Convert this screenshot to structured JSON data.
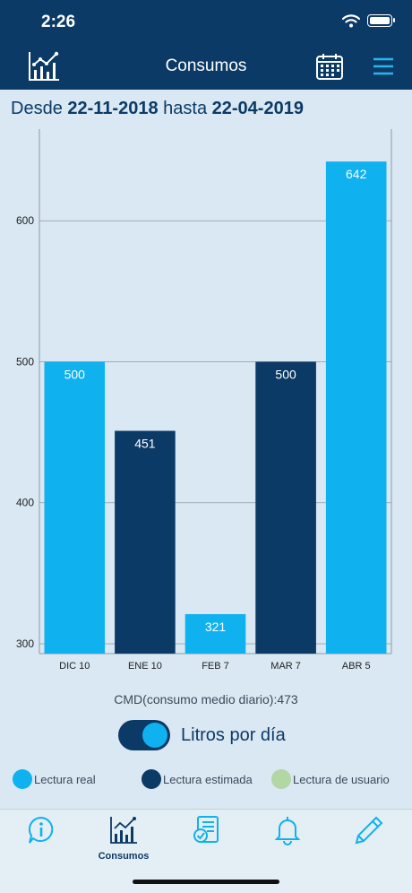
{
  "status_bar": {
    "time": "2:26"
  },
  "header": {
    "title": "Consumos"
  },
  "range": {
    "from_word": "Desde",
    "from_date": "22-11-2018",
    "to_word": "hasta",
    "to_date": "22-04-2019"
  },
  "chart_data": {
    "type": "bar",
    "categories": [
      "DIC 10",
      "ENE 10",
      "FEB 7",
      "MAR 7",
      "ABR 5"
    ],
    "values": [
      500,
      451,
      321,
      500,
      642
    ],
    "bar_types": [
      "real",
      "estimada",
      "real",
      "estimada",
      "real"
    ],
    "data_labels": [
      "500",
      "451",
      "321",
      "500",
      "642"
    ],
    "y_ticks": [
      300,
      400,
      500,
      600
    ],
    "ylim": [
      293,
      665
    ],
    "grid": true,
    "legend": "bottom"
  },
  "cmd": {
    "text": "CMD(consumo medio diario):473"
  },
  "toggle": {
    "label": "Litros por día",
    "on": true
  },
  "legend": [
    {
      "key": "real",
      "label": "Lectura real",
      "color": "#10b1ef"
    },
    {
      "key": "estimada",
      "label": "Lectura estimada",
      "color": "#0c3a66"
    },
    {
      "key": "usuario",
      "label": "Lectura de usuario",
      "color": "#b2d6a4"
    }
  ],
  "tabbar": {
    "tabs": [
      {
        "icon": "info-icon",
        "label": ""
      },
      {
        "icon": "chart-icon",
        "label": "Consumos"
      },
      {
        "icon": "checklist-icon",
        "label": ""
      },
      {
        "icon": "bell-icon",
        "label": ""
      },
      {
        "icon": "pencil-icon",
        "label": ""
      }
    ]
  }
}
